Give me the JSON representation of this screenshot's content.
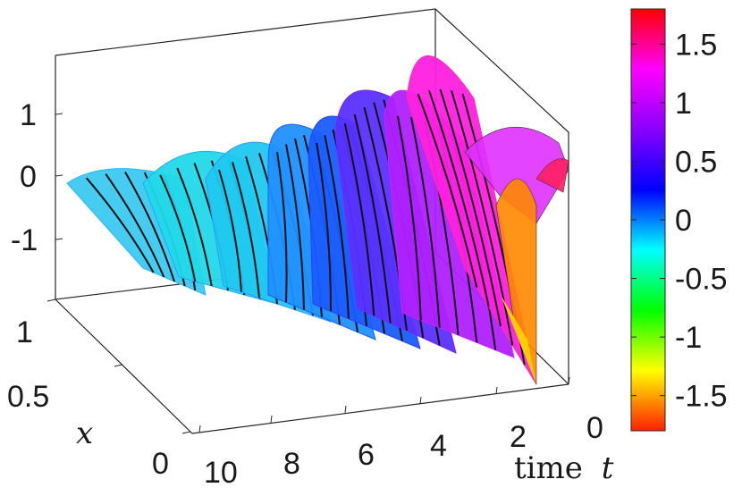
{
  "chart_data": {
    "type": "surface",
    "title": "",
    "subtitle": "",
    "colormap": "hsv",
    "axes": {
      "time": {
        "label_text": "time",
        "label_var": "t",
        "ticks": [
          "10",
          "8",
          "6",
          "4",
          "2",
          "0"
        ],
        "range": [
          0,
          10
        ],
        "direction": "decreasing left-to-right"
      },
      "x": {
        "label_text": "x",
        "ticks": [
          "0",
          "0.5",
          "1"
        ],
        "range": [
          0,
          1
        ]
      },
      "z": {
        "label_text": "",
        "ticks": [
          "1",
          "0",
          "-1"
        ],
        "range": [
          -1.8,
          1.8
        ]
      }
    },
    "colorbar": {
      "ticks": [
        "1.5",
        "1",
        "0.5",
        "0",
        "-0.5",
        "-1",
        "-1.5"
      ],
      "range": [
        -1.8,
        1.8
      ],
      "stops": [
        "#ff0000",
        "#ff00ff",
        "#8800ff",
        "#0000ff",
        "#00ffff",
        "#00ff00",
        "#ffff00",
        "#ff2000"
      ]
    },
    "contours": true,
    "description_values": {
      "amplitude_growth": "oscillation amplitude grows toward time 0, peak about 1.8",
      "ridges_count": 8
    }
  }
}
